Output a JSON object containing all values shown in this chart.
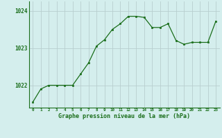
{
  "hours": [
    0,
    1,
    2,
    3,
    4,
    5,
    6,
    7,
    8,
    9,
    10,
    11,
    12,
    13,
    14,
    15,
    16,
    17,
    18,
    19,
    20,
    21,
    22,
    23
  ],
  "pressure": [
    1021.55,
    1021.9,
    1022.0,
    1022.0,
    1022.0,
    1022.0,
    1022.3,
    1022.6,
    1023.05,
    1023.22,
    1023.5,
    1023.65,
    1023.85,
    1023.85,
    1023.82,
    1023.55,
    1023.55,
    1023.65,
    1023.2,
    1023.1,
    1023.15,
    1023.15,
    1023.15,
    1023.72
  ],
  "line_color": "#1a6e1a",
  "marker_color": "#1a6e1a",
  "bg_color": "#d4eeed",
  "grid_color": "#b8cece",
  "xlabel": "Graphe pression niveau de la mer (hPa)",
  "xlabel_color": "#1a6e1a",
  "ylim_min": 1021.4,
  "ylim_max": 1024.25,
  "yticks": [
    1022,
    1023,
    1024
  ],
  "xtick_labels": [
    "0",
    "1",
    "2",
    "3",
    "4",
    "5",
    "6",
    "7",
    "8",
    "9",
    "10",
    "11",
    "12",
    "13",
    "14",
    "15",
    "16",
    "17",
    "18",
    "19",
    "20",
    "21",
    "22",
    "23"
  ]
}
